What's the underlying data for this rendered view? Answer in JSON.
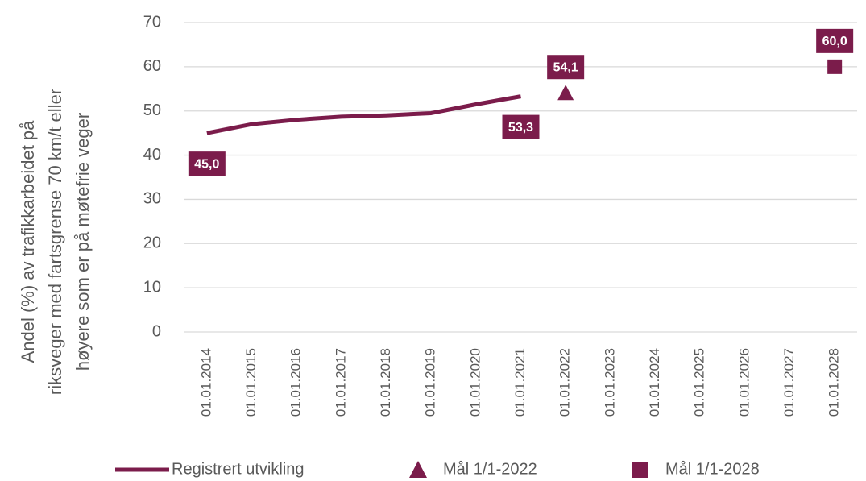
{
  "chart_data": {
    "type": "line",
    "ylabel": [
      "Andel (%) av trafikkarbeidet på",
      "riksveger med fartsgrense 70 km/t eller",
      "høyere som er på møtefrie veger"
    ],
    "categories": [
      "01.01.2014",
      "01.01.2015",
      "01.01.2016",
      "01.01.2017",
      "01.01.2018",
      "01.01.2019",
      "01.01.2020",
      "01.01.2021",
      "01.01.2022",
      "01.01.2023",
      "01.01.2024",
      "01.01.2025",
      "01.01.2026",
      "01.01.2027",
      "01.01.2028"
    ],
    "series": [
      {
        "name": "Registrert utvikling",
        "color": "#7b1c4b",
        "marker": "none",
        "values": [
          45.0,
          47.0,
          48.0,
          48.7,
          49.0,
          49.5,
          51.5,
          53.3,
          null,
          null,
          null,
          null,
          null,
          null,
          null
        ],
        "value_labels": [
          "45,0",
          null,
          null,
          null,
          null,
          null,
          null,
          "53,3",
          null,
          null,
          null,
          null,
          null,
          null,
          null
        ]
      },
      {
        "name": "Mål 1/1-2022",
        "color": "#7b1c4b",
        "marker": "triangle",
        "values": [
          null,
          null,
          null,
          null,
          null,
          null,
          null,
          null,
          54.1,
          null,
          null,
          null,
          null,
          null,
          null
        ],
        "value_labels": [
          null,
          null,
          null,
          null,
          null,
          null,
          null,
          null,
          "54,1",
          null,
          null,
          null,
          null,
          null,
          null
        ]
      },
      {
        "name": "Mål 1/1-2028",
        "color": "#7b1c4b",
        "marker": "square",
        "values": [
          null,
          null,
          null,
          null,
          null,
          null,
          null,
          null,
          null,
          null,
          null,
          null,
          null,
          null,
          60.0
        ],
        "value_labels": [
          null,
          null,
          null,
          null,
          null,
          null,
          null,
          null,
          null,
          null,
          null,
          null,
          null,
          null,
          "60,0"
        ]
      }
    ],
    "ylim": [
      0,
      70
    ],
    "yticks": [
      0,
      10,
      20,
      30,
      40,
      50,
      60,
      70
    ],
    "grid": true,
    "legend": "bottom"
  }
}
